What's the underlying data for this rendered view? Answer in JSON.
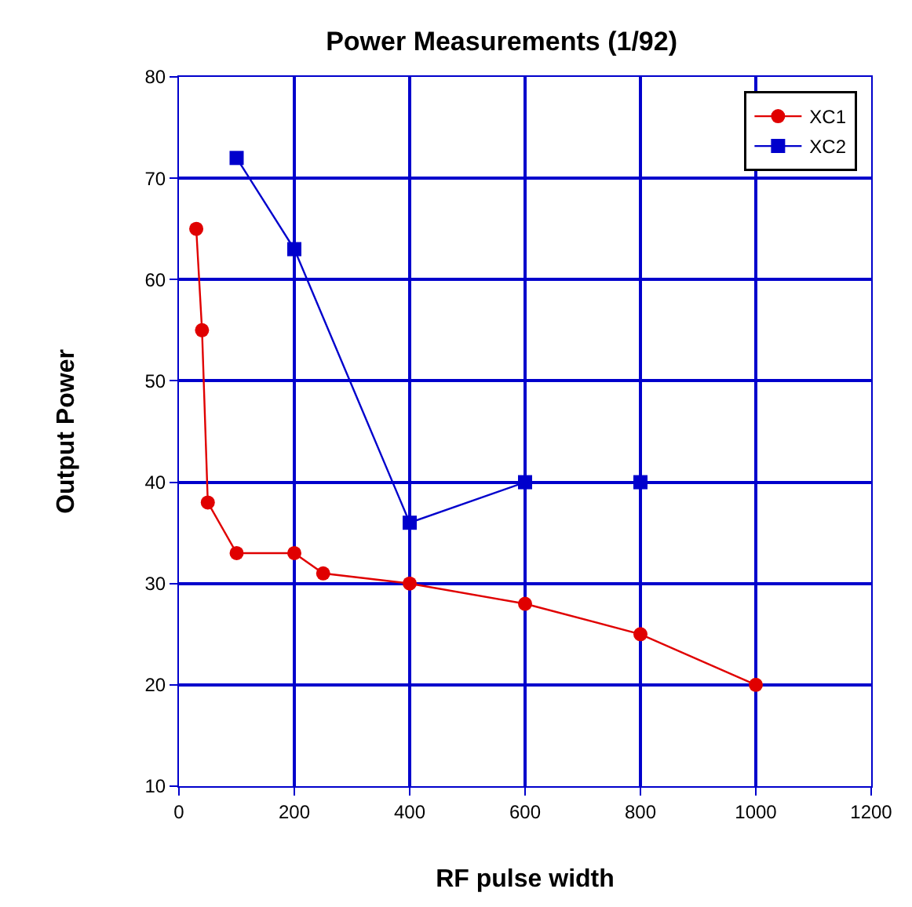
{
  "chart_data": {
    "type": "line",
    "title": "Power Measurements (1/92)",
    "xlabel": "RF pulse width",
    "ylabel": "Output Power",
    "xlim": [
      0,
      1200
    ],
    "xticks": [
      0,
      200,
      400,
      600,
      800,
      1000,
      1200
    ],
    "ylim": [
      10,
      80
    ],
    "yticks": [
      10,
      20,
      30,
      40,
      50,
      60,
      70,
      80
    ],
    "grid": true,
    "legend": "top right",
    "series": [
      {
        "name": "XC1",
        "color": "#e00000",
        "marker": "circle",
        "x": [
          30,
          40,
          50,
          100,
          200,
          250,
          400,
          600,
          800,
          1000
        ],
        "values": [
          65,
          55,
          38,
          33,
          33,
          31,
          30,
          28,
          25,
          20
        ]
      },
      {
        "name": "XC2",
        "color": "#0000cc",
        "marker": "square",
        "x": [
          100,
          200,
          400,
          600,
          800
        ],
        "values": [
          72,
          63,
          36,
          40,
          40
        ]
      }
    ]
  }
}
